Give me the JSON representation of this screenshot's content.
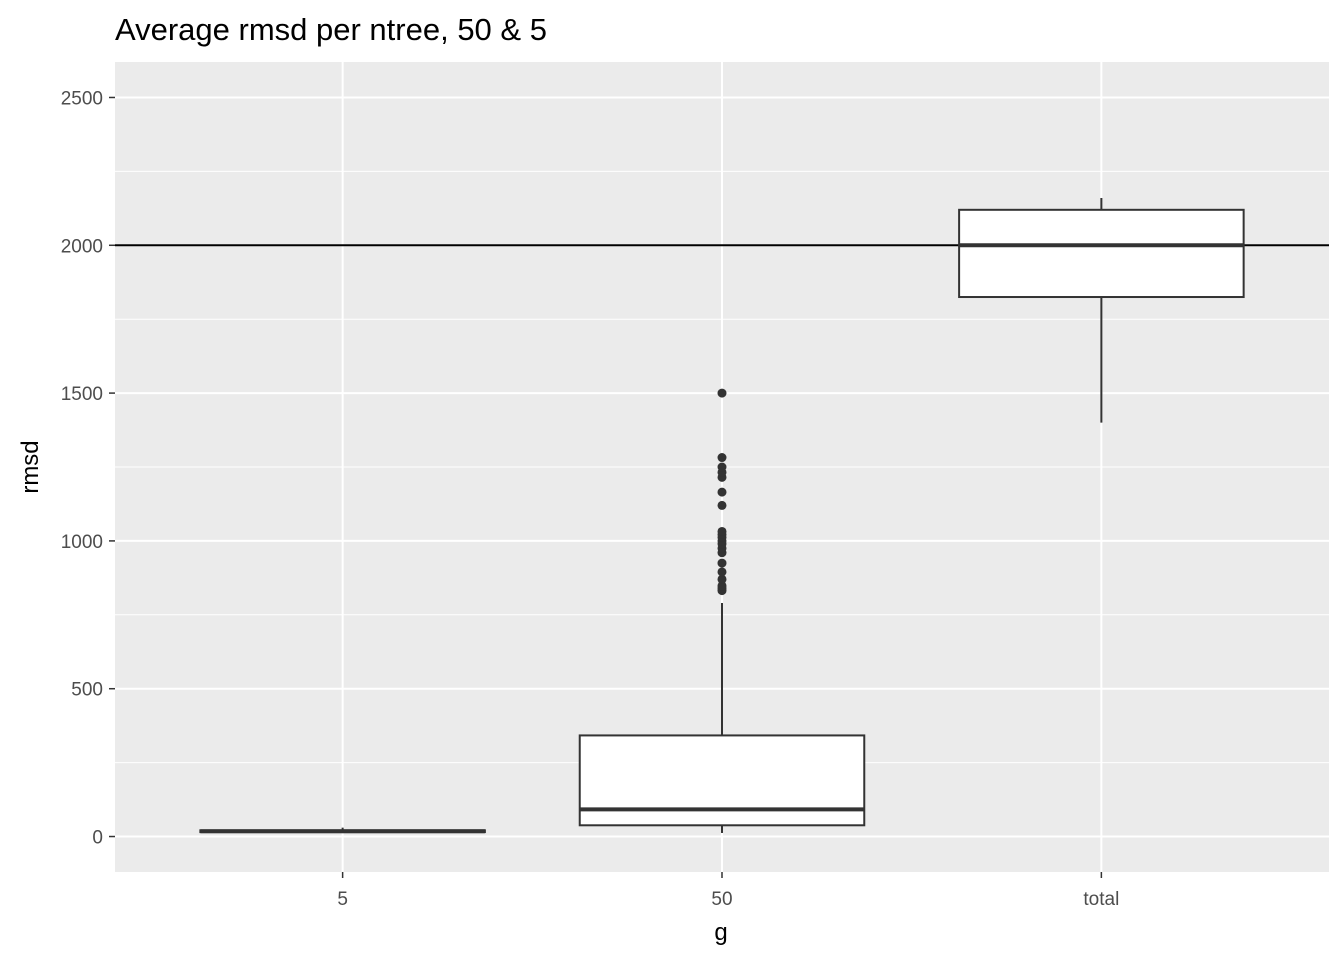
{
  "chart_data": {
    "type": "boxplot",
    "title": "Average rmsd per ntree, 50 & 5",
    "xlabel": "g",
    "ylabel": "rmsd",
    "categories": [
      "5",
      "50",
      "total"
    ],
    "ylim": [
      -120,
      2620
    ],
    "yticks": [
      0,
      500,
      1000,
      1500,
      2000,
      2500
    ],
    "grid": true,
    "reference_line": {
      "y": 2000
    },
    "boxes": [
      {
        "category": "5",
        "whisker_low": 12,
        "q1": 15,
        "median": 18,
        "q3": 21,
        "whisker_high": 30,
        "outliers": []
      },
      {
        "category": "50",
        "whisker_low": 12,
        "q1": 38,
        "median": 92,
        "q3": 342,
        "whisker_high": 790,
        "outliers": [
          832,
          840,
          848,
          870,
          895,
          925,
          960,
          975,
          990,
          1000,
          1012,
          1022,
          1032,
          1120,
          1165,
          1215,
          1232,
          1250,
          1282,
          1500
        ]
      },
      {
        "category": "total",
        "whisker_low": 1400,
        "q1": 1825,
        "median": 2000,
        "q3": 2120,
        "whisker_high": 2160,
        "outliers": []
      }
    ]
  }
}
